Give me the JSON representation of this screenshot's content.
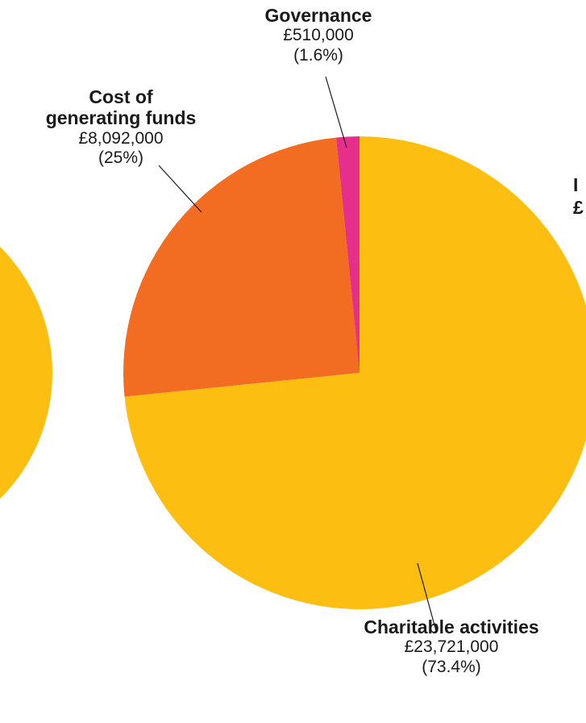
{
  "chart_data": {
    "type": "pie",
    "title": "",
    "colors": {
      "charitable": "#fdbe12",
      "cost": "#f26c22",
      "governance": "#e62e8b",
      "left_pie": "#fdbe12",
      "leader": "#1a1a1a"
    },
    "slices": [
      {
        "name": "Charitable activities",
        "value": 23721000,
        "value_label": "£23,721,000",
        "percent_label": "(73.4%)",
        "color_key": "charitable"
      },
      {
        "name": "Cost of generating funds",
        "name_line1": "Cost of",
        "name_line2": "generating funds",
        "value": 8092000,
        "value_label": "£8,092,000",
        "percent_label": "(25%)",
        "color_key": "cost"
      },
      {
        "name": "Governance",
        "value": 510000,
        "value_label": "£510,000",
        "percent_label": "(1.6%)",
        "color_key": "governance"
      }
    ],
    "clipped_label": {
      "line1": "I",
      "line2": "£"
    }
  }
}
